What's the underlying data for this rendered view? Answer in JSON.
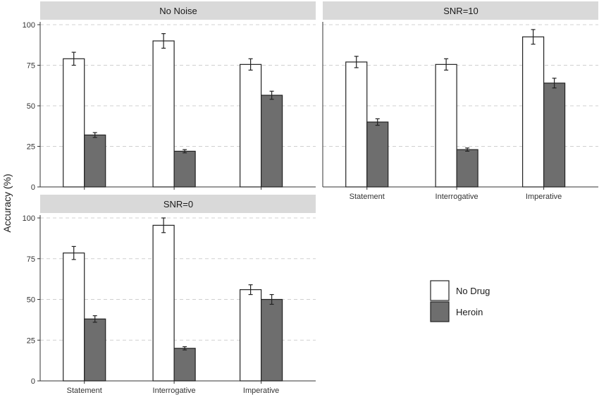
{
  "chart_data": {
    "type": "bar",
    "ylabel": "Accuracy (%)",
    "xlabel": "",
    "ylim": [
      0,
      100
    ],
    "yticks": [
      0,
      25,
      50,
      75,
      100
    ],
    "grid": true,
    "legend_position": "right",
    "categories": [
      "Statement",
      "Interrogative",
      "Imperative"
    ],
    "series_names": [
      "No Drug",
      "Heroin"
    ],
    "colors": {
      "No Drug": "#ffffff",
      "Heroin": "#6e6e6e"
    },
    "panels": [
      {
        "title": "No Noise",
        "series": [
          {
            "name": "No Drug",
            "values": [
              79,
              90,
              75.5
            ],
            "errors": [
              4,
              4.5,
              3.5
            ]
          },
          {
            "name": "Heroin",
            "values": [
              32,
              22,
              56.5
            ],
            "errors": [
              1.5,
              1,
              2.5
            ]
          }
        ]
      },
      {
        "title": "SNR=10",
        "series": [
          {
            "name": "No Drug",
            "values": [
              77,
              75.5,
              92.5
            ],
            "errors": [
              3.5,
              3.5,
              4.5
            ]
          },
          {
            "name": "Heroin",
            "values": [
              40,
              23,
              64
            ],
            "errors": [
              2,
              1,
              3
            ]
          }
        ]
      },
      {
        "title": "SNR=0",
        "series": [
          {
            "name": "No Drug",
            "values": [
              78.5,
              95.5,
              56
            ],
            "errors": [
              4,
              4.5,
              3
            ]
          },
          {
            "name": "Heroin",
            "values": [
              38,
              20,
              50
            ],
            "errors": [
              2,
              1,
              3
            ]
          }
        ]
      }
    ]
  }
}
